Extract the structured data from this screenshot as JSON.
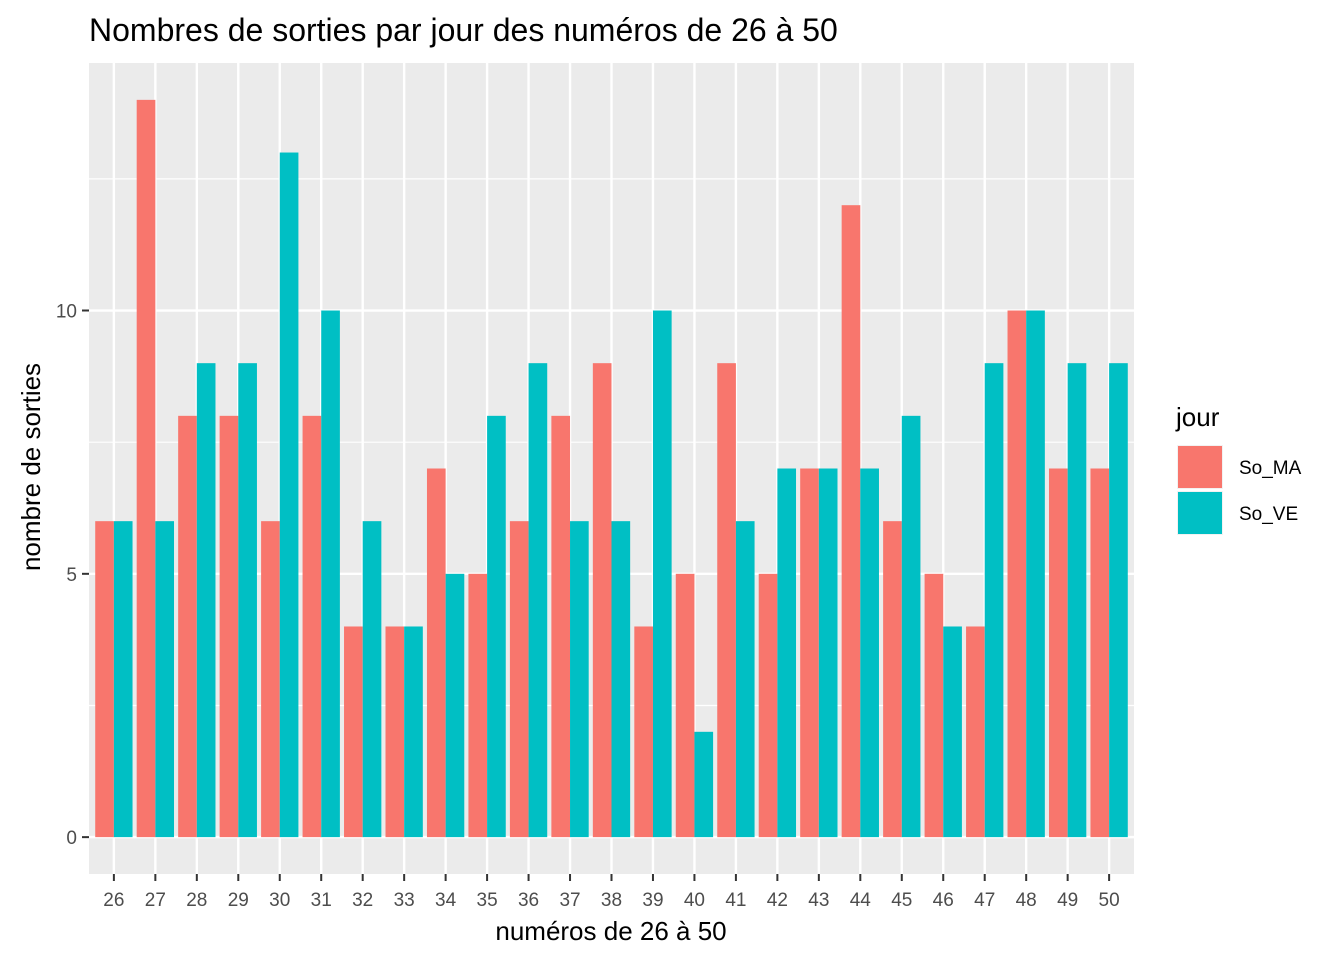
{
  "chart_data": {
    "type": "bar",
    "title": "Nombres de sorties par jour des numéros de 26 à 50",
    "xlabel": "numéros de 26 à 50",
    "ylabel": "nombre de sorties",
    "categories": [
      "26",
      "27",
      "28",
      "29",
      "30",
      "31",
      "32",
      "33",
      "34",
      "35",
      "36",
      "37",
      "38",
      "39",
      "40",
      "41",
      "42",
      "43",
      "44",
      "45",
      "46",
      "47",
      "48",
      "49",
      "50"
    ],
    "series": [
      {
        "name": "So_MA",
        "color": "#F8766D",
        "values": [
          6,
          14,
          8,
          8,
          6,
          8,
          4,
          4,
          7,
          5,
          6,
          8,
          9,
          4,
          5,
          9,
          5,
          7,
          12,
          6,
          5,
          4,
          10,
          7,
          7
        ]
      },
      {
        "name": "So_VE",
        "color": "#00BFC4",
        "values": [
          6,
          6,
          9,
          9,
          13,
          10,
          6,
          4,
          5,
          8,
          9,
          6,
          6,
          10,
          2,
          6,
          7,
          7,
          7,
          8,
          4,
          9,
          10,
          9,
          9
        ]
      }
    ],
    "yticks": [
      0,
      5,
      10
    ],
    "ylim": [
      -0.7,
      14.7
    ],
    "legend": {
      "title": "jour",
      "position": "right"
    },
    "grid": true,
    "panel_background": "#EBEBEB"
  }
}
